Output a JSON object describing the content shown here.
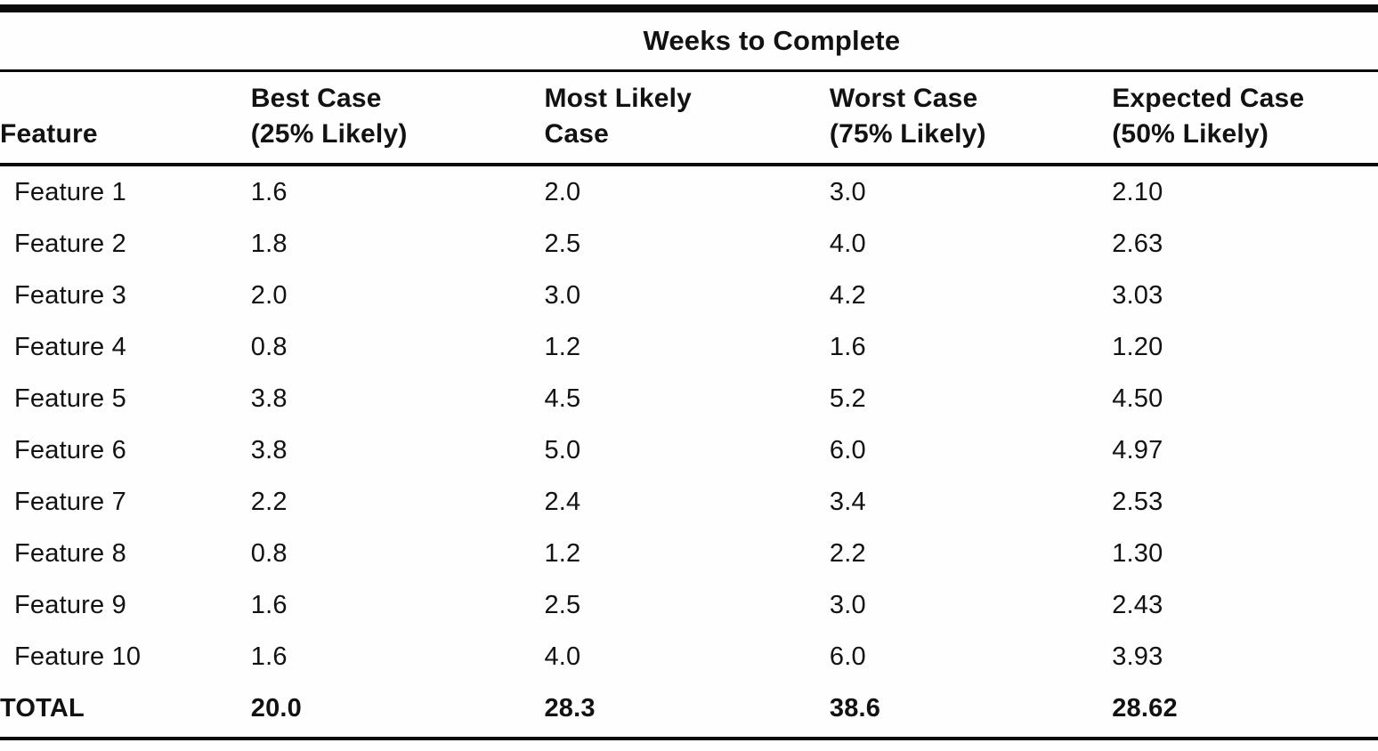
{
  "table": {
    "spanner": "Weeks to Complete",
    "headers": {
      "feature": "Feature",
      "best": {
        "l1": "Best Case",
        "l2": "(25% Likely)"
      },
      "likely": {
        "l1": "Most Likely",
        "l2": "Case"
      },
      "worst": {
        "l1": "Worst Case",
        "l2": "(75% Likely)"
      },
      "expected": {
        "l1": "Expected Case",
        "l2": "(50% Likely)"
      }
    },
    "rows": [
      {
        "feature": "Feature 1",
        "best": "1.6",
        "likely": "2.0",
        "worst": "3.0",
        "expected": "2.10"
      },
      {
        "feature": "Feature 2",
        "best": "1.8",
        "likely": "2.5",
        "worst": "4.0",
        "expected": "2.63"
      },
      {
        "feature": "Feature 3",
        "best": "2.0",
        "likely": "3.0",
        "worst": "4.2",
        "expected": "3.03"
      },
      {
        "feature": "Feature 4",
        "best": "0.8",
        "likely": "1.2",
        "worst": "1.6",
        "expected": "1.20"
      },
      {
        "feature": "Feature 5",
        "best": "3.8",
        "likely": "4.5",
        "worst": "5.2",
        "expected": "4.50"
      },
      {
        "feature": "Feature 6",
        "best": "3.8",
        "likely": "5.0",
        "worst": "6.0",
        "expected": "4.97"
      },
      {
        "feature": "Feature 7",
        "best": "2.2",
        "likely": "2.4",
        "worst": "3.4",
        "expected": "2.53"
      },
      {
        "feature": "Feature 8",
        "best": "0.8",
        "likely": "1.2",
        "worst": "2.2",
        "expected": "1.30"
      },
      {
        "feature": "Feature 9",
        "best": "1.6",
        "likely": "2.5",
        "worst": "3.0",
        "expected": "2.43"
      },
      {
        "feature": "Feature 10",
        "best": "1.6",
        "likely": "4.0",
        "worst": "6.0",
        "expected": "3.93"
      }
    ],
    "total": {
      "feature": "TOTAL",
      "best": "20.0",
      "likely": "28.3",
      "worst": "38.6",
      "expected": "28.62"
    }
  },
  "chart_data": {
    "type": "table",
    "title": "Weeks to Complete",
    "columns": [
      "Feature",
      "Best Case (25% Likely)",
      "Most Likely Case",
      "Worst Case (75% Likely)",
      "Expected Case (50% Likely)"
    ],
    "rows": [
      [
        "Feature 1",
        1.6,
        2.0,
        3.0,
        2.1
      ],
      [
        "Feature 2",
        1.8,
        2.5,
        4.0,
        2.63
      ],
      [
        "Feature 3",
        2.0,
        3.0,
        4.2,
        3.03
      ],
      [
        "Feature 4",
        0.8,
        1.2,
        1.6,
        1.2
      ],
      [
        "Feature 5",
        3.8,
        4.5,
        5.2,
        4.5
      ],
      [
        "Feature 6",
        3.8,
        5.0,
        6.0,
        4.97
      ],
      [
        "Feature 7",
        2.2,
        2.4,
        3.4,
        2.53
      ],
      [
        "Feature 8",
        0.8,
        1.2,
        2.2,
        1.3
      ],
      [
        "Feature 9",
        1.6,
        2.5,
        3.0,
        2.43
      ],
      [
        "Feature 10",
        1.6,
        4.0,
        6.0,
        3.93
      ],
      [
        "TOTAL",
        20.0,
        28.3,
        38.6,
        28.62
      ]
    ]
  }
}
